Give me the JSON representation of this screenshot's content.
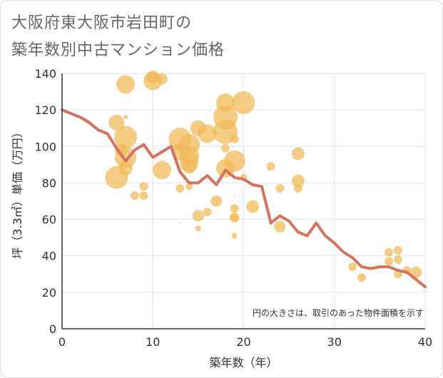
{
  "title_lines": [
    "大阪府東大阪市岩田町の",
    "築年数別中古マンション価格"
  ],
  "chart_data": {
    "type": "scatter",
    "title": "大阪府東大阪市岩田町の築年数別中古マンション価格",
    "xlabel": "築年数（年）",
    "ylabel": "坪（3.3㎡）単価（万円）",
    "xlim": [
      0,
      40
    ],
    "ylim": [
      0,
      140
    ],
    "xticks": [
      0,
      10,
      20,
      30,
      40
    ],
    "yticks": [
      0,
      20,
      40,
      60,
      80,
      100,
      120,
      140
    ],
    "grid": true,
    "note": "円の大きさは、取引のあった物件面積を示す",
    "colors": {
      "bubble": "#f2bb5a",
      "line": "#d4735e",
      "grid": "#dde6ee"
    },
    "points": [
      {
        "x": 6,
        "y": 113,
        "s": 11
      },
      {
        "x": 6,
        "y": 83,
        "s": 16
      },
      {
        "x": 6.5,
        "y": 98,
        "s": 9
      },
      {
        "x": 7,
        "y": 134,
        "s": 13
      },
      {
        "x": 7,
        "y": 105,
        "s": 16
      },
      {
        "x": 7,
        "y": 94,
        "s": 15
      },
      {
        "x": 7,
        "y": 88,
        "s": 10
      },
      {
        "x": 7,
        "y": 116,
        "s": 3
      },
      {
        "x": 8,
        "y": 73,
        "s": 6
      },
      {
        "x": 9,
        "y": 78,
        "s": 6
      },
      {
        "x": 9,
        "y": 73,
        "s": 6
      },
      {
        "x": 10,
        "y": 136,
        "s": 13
      },
      {
        "x": 10,
        "y": 138,
        "s": 9
      },
      {
        "x": 11,
        "y": 137,
        "s": 8
      },
      {
        "x": 11,
        "y": 87,
        "s": 13
      },
      {
        "x": 13,
        "y": 104,
        "s": 16
      },
      {
        "x": 13,
        "y": 97,
        "s": 12
      },
      {
        "x": 13,
        "y": 77,
        "s": 6
      },
      {
        "x": 13,
        "y": 58,
        "s": 1
      },
      {
        "x": 14,
        "y": 101,
        "s": 15
      },
      {
        "x": 14,
        "y": 95,
        "s": 14
      },
      {
        "x": 14,
        "y": 91,
        "s": 13
      },
      {
        "x": 14,
        "y": 89,
        "s": 10
      },
      {
        "x": 14,
        "y": 78,
        "s": 5
      },
      {
        "x": 15,
        "y": 110,
        "s": 11
      },
      {
        "x": 15,
        "y": 62,
        "s": 8
      },
      {
        "x": 15,
        "y": 55,
        "s": 4
      },
      {
        "x": 16,
        "y": 107,
        "s": 13
      },
      {
        "x": 16,
        "y": 64,
        "s": 6
      },
      {
        "x": 17,
        "y": 70,
        "s": 8
      },
      {
        "x": 18,
        "y": 124,
        "s": 13
      },
      {
        "x": 18,
        "y": 116,
        "s": 17
      },
      {
        "x": 18,
        "y": 108,
        "s": 17
      },
      {
        "x": 18,
        "y": 99,
        "s": 6
      },
      {
        "x": 18,
        "y": 88,
        "s": 13
      },
      {
        "x": 19,
        "y": 104,
        "s": 6
      },
      {
        "x": 19,
        "y": 92,
        "s": 15
      },
      {
        "x": 19,
        "y": 73,
        "s": 1
      },
      {
        "x": 19,
        "y": 66,
        "s": 6
      },
      {
        "x": 19,
        "y": 61,
        "s": 7
      },
      {
        "x": 19,
        "y": 61,
        "s": 5
      },
      {
        "x": 19,
        "y": 51,
        "s": 4
      },
      {
        "x": 20,
        "y": 124,
        "s": 16
      },
      {
        "x": 20,
        "y": 83,
        "s": 5
      },
      {
        "x": 21,
        "y": 67,
        "s": 9
      },
      {
        "x": 23,
        "y": 89,
        "s": 6
      },
      {
        "x": 24,
        "y": 77,
        "s": 6
      },
      {
        "x": 24,
        "y": 56,
        "s": 8
      },
      {
        "x": 26,
        "y": 96,
        "s": 9
      },
      {
        "x": 26,
        "y": 81,
        "s": 9
      },
      {
        "x": 26,
        "y": 77,
        "s": 6
      },
      {
        "x": 32,
        "y": 34,
        "s": 6
      },
      {
        "x": 33,
        "y": 28,
        "s": 6
      },
      {
        "x": 36,
        "y": 42,
        "s": 6
      },
      {
        "x": 36,
        "y": 37,
        "s": 6
      },
      {
        "x": 37,
        "y": 43,
        "s": 6
      },
      {
        "x": 37,
        "y": 38,
        "s": 6
      },
      {
        "x": 37,
        "y": 30,
        "s": 6
      },
      {
        "x": 38,
        "y": 32,
        "s": 6
      },
      {
        "x": 39,
        "y": 31,
        "s": 8
      }
    ],
    "series": [
      {
        "type": "line",
        "x": [
          0,
          1,
          2,
          3,
          4,
          5,
          6,
          7,
          8,
          9,
          10,
          11,
          12,
          13,
          14,
          15,
          16,
          17,
          18,
          19,
          20,
          21,
          22,
          23,
          24,
          25,
          26,
          27,
          28,
          29,
          30,
          31,
          32,
          33,
          34,
          35,
          36,
          37,
          38,
          39,
          40
        ],
        "y": [
          120,
          118,
          116,
          113,
          109,
          107,
          99,
          92,
          98,
          101,
          94,
          97,
          100,
          86,
          80,
          80,
          84,
          79,
          87,
          83,
          82,
          79,
          78,
          58,
          62,
          59,
          53,
          51,
          58,
          51,
          47,
          42,
          39,
          34,
          33,
          34,
          34,
          32,
          31,
          27,
          23
        ]
      }
    ]
  }
}
